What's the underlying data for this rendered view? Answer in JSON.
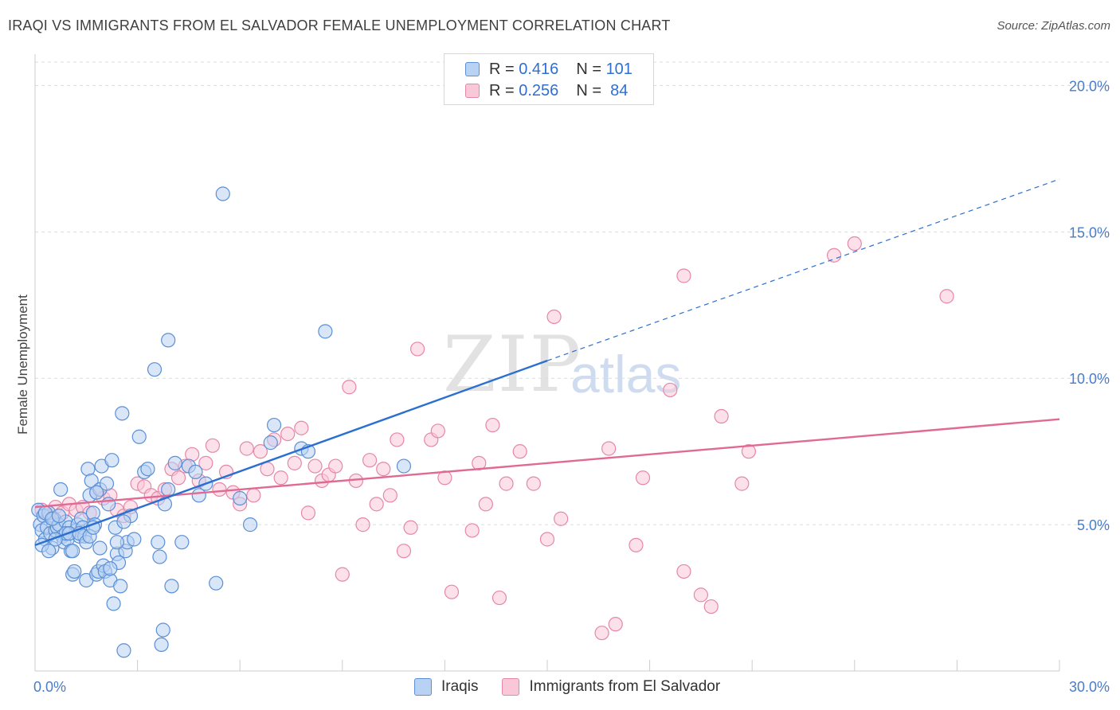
{
  "title": "IRAQI VS IMMIGRANTS FROM EL SALVADOR FEMALE UNEMPLOYMENT CORRELATION CHART",
  "source": "Source: ZipAtlas.com",
  "watermark": {
    "zip": "ZIP",
    "atlas": "atlas"
  },
  "legend_top": [
    {
      "r_label": "R =",
      "r_value": "0.416",
      "n_label": "N =",
      "n_value": "101"
    },
    {
      "r_label": "R =",
      "r_value": "0.256",
      "n_label": "N =",
      "n_value": "84"
    }
  ],
  "colors": {
    "iraqi_fill": "#b8d2f3",
    "iraqi_stroke": "#5b8fd6",
    "iraqi_line": "#2b6fd0",
    "salv_fill": "#f9c8d8",
    "salv_stroke": "#e687a8",
    "salv_line": "#e06a93",
    "grid": "#dcdcdc",
    "tick_text": "#4a7cc9"
  },
  "chart_data": {
    "type": "scatter",
    "title": "IRAQI VS IMMIGRANTS FROM EL SALVADOR FEMALE UNEMPLOYMENT CORRELATION CHART",
    "xlabel": "",
    "ylabel": "Female Unemployment",
    "xlim": [
      0,
      30
    ],
    "ylim": [
      0,
      20.8
    ],
    "x_tick_labels": [
      "0.0%",
      "30.0%"
    ],
    "y_ticks": [
      5,
      10,
      15,
      20
    ],
    "y_tick_labels": [
      "5.0%",
      "10.0%",
      "15.0%",
      "20.0%"
    ],
    "grid": true,
    "legend_position": "top-center",
    "series": [
      {
        "name": "Iraqis",
        "r": 0.416,
        "n": 101,
        "trend": {
          "x": [
            0.0,
            15.0
          ],
          "y": [
            4.3,
            10.6
          ],
          "dashed_extension": {
            "x": [
              15.0,
              30.0
            ],
            "y": [
              10.6,
              16.8
            ]
          }
        },
        "points": [
          [
            0.1,
            5.5
          ],
          [
            0.15,
            5.0
          ],
          [
            0.2,
            4.8
          ],
          [
            0.25,
            5.3
          ],
          [
            0.3,
            4.5
          ],
          [
            0.35,
            4.9
          ],
          [
            0.4,
            5.4
          ],
          [
            0.45,
            4.7
          ],
          [
            0.5,
            4.2
          ],
          [
            0.55,
            5.2
          ],
          [
            0.6,
            4.8
          ],
          [
            0.65,
            4.9
          ],
          [
            0.7,
            5.0
          ],
          [
            0.75,
            6.2
          ],
          [
            0.8,
            4.6
          ],
          [
            0.85,
            4.4
          ],
          [
            0.9,
            5.1
          ],
          [
            0.95,
            4.5
          ],
          [
            1.0,
            4.9
          ],
          [
            1.05,
            4.1
          ],
          [
            1.1,
            3.3
          ],
          [
            1.15,
            3.4
          ],
          [
            1.2,
            4.8
          ],
          [
            1.25,
            5.0
          ],
          [
            1.3,
            4.6
          ],
          [
            1.35,
            5.2
          ],
          [
            1.4,
            4.9
          ],
          [
            1.45,
            4.6
          ],
          [
            1.5,
            3.1
          ],
          [
            1.55,
            6.9
          ],
          [
            1.6,
            6.0
          ],
          [
            1.65,
            6.5
          ],
          [
            1.7,
            5.4
          ],
          [
            1.75,
            5.0
          ],
          [
            1.8,
            3.3
          ],
          [
            1.85,
            3.4
          ],
          [
            1.9,
            6.2
          ],
          [
            1.95,
            7.0
          ],
          [
            2.0,
            3.6
          ],
          [
            2.05,
            3.4
          ],
          [
            2.1,
            6.4
          ],
          [
            2.15,
            5.7
          ],
          [
            2.2,
            3.1
          ],
          [
            2.25,
            7.2
          ],
          [
            2.3,
            2.3
          ],
          [
            2.35,
            4.9
          ],
          [
            2.4,
            4.0
          ],
          [
            2.45,
            3.7
          ],
          [
            2.5,
            2.9
          ],
          [
            2.55,
            8.8
          ],
          [
            2.6,
            0.7
          ],
          [
            2.65,
            4.1
          ],
          [
            2.7,
            4.4
          ],
          [
            2.8,
            5.3
          ],
          [
            3.05,
            8.0
          ],
          [
            3.2,
            6.8
          ],
          [
            3.5,
            10.3
          ],
          [
            3.6,
            4.4
          ],
          [
            3.65,
            3.9
          ],
          [
            3.7,
            0.9
          ],
          [
            3.75,
            1.4
          ],
          [
            3.8,
            5.7
          ],
          [
            3.9,
            11.3
          ],
          [
            4.0,
            2.9
          ],
          [
            4.3,
            4.4
          ],
          [
            4.5,
            7.0
          ],
          [
            4.7,
            6.8
          ],
          [
            4.8,
            6.0
          ],
          [
            5.0,
            6.4
          ],
          [
            5.3,
            3.0
          ],
          [
            5.5,
            16.3
          ],
          [
            6.0,
            5.9
          ],
          [
            6.3,
            5.0
          ],
          [
            6.9,
            7.8
          ],
          [
            7.0,
            8.4
          ],
          [
            7.8,
            7.6
          ],
          [
            8.0,
            7.5
          ],
          [
            8.5,
            11.6
          ],
          [
            10.8,
            7.0
          ],
          [
            0.3,
            5.4
          ],
          [
            0.5,
            5.2
          ],
          [
            0.7,
            5.3
          ],
          [
            0.9,
            4.7
          ],
          [
            1.0,
            4.7
          ],
          [
            1.1,
            4.1
          ],
          [
            1.3,
            4.7
          ],
          [
            1.5,
            4.4
          ],
          [
            1.6,
            4.6
          ],
          [
            1.7,
            4.9
          ],
          [
            1.8,
            6.1
          ],
          [
            1.9,
            4.2
          ],
          [
            2.2,
            3.5
          ],
          [
            2.4,
            4.4
          ],
          [
            2.6,
            5.1
          ],
          [
            2.9,
            4.5
          ],
          [
            3.3,
            6.9
          ],
          [
            3.9,
            6.2
          ],
          [
            4.1,
            7.1
          ],
          [
            0.2,
            4.3
          ],
          [
            0.4,
            4.1
          ],
          [
            0.6,
            4.5
          ]
        ]
      },
      {
        "name": "Immigrants from El Salvador",
        "r": 0.256,
        "n": 84,
        "trend": {
          "x": [
            0.0,
            30.0
          ],
          "y": [
            5.6,
            8.6
          ]
        },
        "points": [
          [
            0.2,
            5.5
          ],
          [
            0.4,
            5.3
          ],
          [
            0.6,
            5.6
          ],
          [
            0.8,
            5.4
          ],
          [
            1.0,
            5.7
          ],
          [
            1.2,
            5.5
          ],
          [
            1.4,
            5.6
          ],
          [
            1.6,
            5.4
          ],
          [
            1.8,
            6.1
          ],
          [
            2.0,
            5.9
          ],
          [
            2.2,
            6.0
          ],
          [
            2.4,
            5.5
          ],
          [
            2.6,
            5.3
          ],
          [
            2.8,
            5.6
          ],
          [
            3.0,
            6.4
          ],
          [
            3.2,
            6.3
          ],
          [
            3.4,
            6.0
          ],
          [
            3.6,
            5.9
          ],
          [
            3.8,
            6.2
          ],
          [
            4.0,
            6.9
          ],
          [
            4.2,
            6.6
          ],
          [
            4.4,
            7.0
          ],
          [
            4.6,
            7.4
          ],
          [
            4.8,
            6.5
          ],
          [
            5.0,
            7.1
          ],
          [
            5.2,
            7.7
          ],
          [
            5.4,
            6.2
          ],
          [
            5.6,
            6.8
          ],
          [
            5.8,
            6.1
          ],
          [
            6.0,
            5.7
          ],
          [
            6.2,
            7.6
          ],
          [
            6.4,
            6.0
          ],
          [
            6.6,
            7.5
          ],
          [
            6.8,
            6.9
          ],
          [
            7.0,
            7.9
          ],
          [
            7.2,
            6.6
          ],
          [
            7.4,
            8.1
          ],
          [
            7.6,
            7.1
          ],
          [
            7.8,
            8.3
          ],
          [
            8.0,
            5.4
          ],
          [
            8.2,
            7.0
          ],
          [
            8.4,
            6.5
          ],
          [
            8.6,
            6.7
          ],
          [
            8.8,
            7.0
          ],
          [
            9.0,
            3.3
          ],
          [
            9.2,
            9.7
          ],
          [
            9.4,
            6.5
          ],
          [
            9.6,
            5.0
          ],
          [
            9.8,
            7.2
          ],
          [
            10.0,
            5.7
          ],
          [
            10.2,
            6.9
          ],
          [
            10.4,
            6.0
          ],
          [
            10.6,
            7.9
          ],
          [
            10.8,
            4.1
          ],
          [
            11.0,
            4.9
          ],
          [
            11.2,
            11.0
          ],
          [
            11.6,
            7.9
          ],
          [
            11.8,
            8.2
          ],
          [
            12.0,
            6.6
          ],
          [
            12.2,
            2.7
          ],
          [
            12.8,
            4.8
          ],
          [
            13.0,
            7.1
          ],
          [
            13.2,
            5.7
          ],
          [
            13.4,
            8.4
          ],
          [
            13.6,
            2.5
          ],
          [
            13.8,
            6.4
          ],
          [
            14.2,
            7.5
          ],
          [
            14.6,
            6.4
          ],
          [
            15.0,
            4.5
          ],
          [
            15.2,
            12.1
          ],
          [
            15.4,
            5.2
          ],
          [
            16.6,
            1.3
          ],
          [
            16.8,
            7.6
          ],
          [
            17.0,
            1.6
          ],
          [
            17.6,
            4.3
          ],
          [
            17.8,
            6.6
          ],
          [
            18.6,
            9.6
          ],
          [
            19.0,
            13.5
          ],
          [
            19.0,
            3.4
          ],
          [
            19.5,
            2.6
          ],
          [
            19.8,
            2.2
          ],
          [
            20.1,
            8.7
          ],
          [
            20.7,
            6.4
          ],
          [
            20.9,
            7.5
          ]
        ],
        "extra_points": [
          [
            23.4,
            14.2
          ],
          [
            24.0,
            14.6
          ],
          [
            26.7,
            12.8
          ]
        ]
      }
    ]
  },
  "legend_bottom": [
    {
      "label": "Iraqis"
    },
    {
      "label": "Immigrants from El Salvador"
    }
  ]
}
